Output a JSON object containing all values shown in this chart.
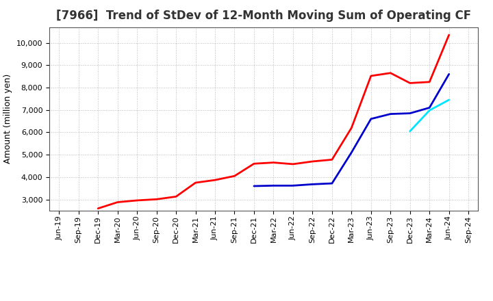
{
  "title": "[7966]  Trend of StDev of 12-Month Moving Sum of Operating CF",
  "ylabel": "Amount (million yen)",
  "background_color": "#ffffff",
  "grid_color": "#bbbbbb",
  "ylim": [
    2500,
    10700
  ],
  "yticks": [
    3000,
    4000,
    5000,
    6000,
    7000,
    8000,
    9000,
    10000
  ],
  "series": {
    "3 Years": {
      "color": "#ff0000",
      "x": [
        "Dec-19",
        "Mar-20",
        "Jun-20",
        "Sep-20",
        "Dec-20",
        "Mar-21",
        "Jun-21",
        "Sep-21",
        "Dec-21",
        "Mar-22",
        "Jun-22",
        "Sep-22",
        "Dec-22",
        "Mar-23",
        "Jun-23",
        "Sep-23",
        "Dec-23",
        "Mar-24",
        "Jun-24"
      ],
      "y": [
        2600,
        2880,
        2960,
        3010,
        3130,
        3750,
        3870,
        4050,
        4600,
        4650,
        4580,
        4700,
        4780,
        6200,
        8520,
        8650,
        8200,
        8250,
        10350
      ]
    },
    "5 Years": {
      "color": "#0000cd",
      "x": [
        "Dec-21",
        "Mar-22",
        "Jun-22",
        "Sep-22",
        "Dec-22",
        "Mar-23",
        "Jun-23",
        "Sep-23",
        "Dec-23",
        "Mar-24",
        "Jun-24"
      ],
      "y": [
        3600,
        3620,
        3620,
        3680,
        3720,
        5100,
        6600,
        6820,
        6850,
        7100,
        8600
      ]
    },
    "7 Years": {
      "color": "#00e5ff",
      "x": [
        "Dec-23",
        "Mar-24",
        "Jun-24"
      ],
      "y": [
        6050,
        6980,
        7450
      ]
    },
    "10 Years": {
      "color": "#008000",
      "x": [],
      "y": []
    }
  },
  "xtick_labels": [
    "Jun-19",
    "Sep-19",
    "Dec-19",
    "Mar-20",
    "Jun-20",
    "Sep-20",
    "Dec-20",
    "Mar-21",
    "Jun-21",
    "Sep-21",
    "Dec-21",
    "Mar-22",
    "Jun-22",
    "Sep-22",
    "Dec-22",
    "Mar-23",
    "Jun-23",
    "Sep-23",
    "Dec-23",
    "Mar-24",
    "Jun-24",
    "Sep-24"
  ],
  "title_fontsize": 12,
  "axis_label_fontsize": 9,
  "tick_fontsize": 8,
  "legend_fontsize": 9,
  "linewidth": 2.0
}
